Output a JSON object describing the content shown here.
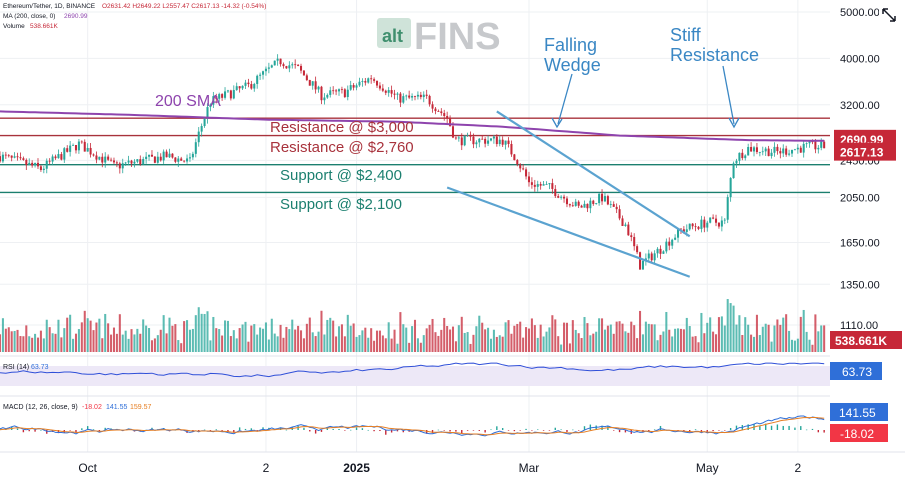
{
  "header": {
    "symbol_line": "Ethereum/Tether, 1D, BINANCE",
    "ohlc_line": "O2631.42 H2649.22 L2557.47 C2617.13 -14.32 (-0.54%)",
    "ma_line": "MA (200, close, 0)",
    "ma_value": "2690.99",
    "volume_line": "Volume",
    "volume_value": "538.661K"
  },
  "watermark": {
    "prefix": "alt",
    "name": "FINS"
  },
  "colors": {
    "up": "#26a69a",
    "down": "#c62838",
    "sma": "#8e44ad",
    "resistance": "#a8323c",
    "support": "#1b7f6f",
    "wedge": "#5ba3d0",
    "annotation": "#3a87c4",
    "rsi": "#2f4fd8",
    "macd": "#2f6fd8",
    "signal": "#e67e22",
    "grid": "#eef0f3"
  },
  "annotations": {
    "sma_label": "200 SMA",
    "falling_wedge": [
      "Falling",
      "Wedge"
    ],
    "stiff_resistance": [
      "Stiff",
      "Resistance"
    ],
    "levels": [
      {
        "label": "Resistance @ $3,000",
        "price": 3000,
        "kind": "resistance"
      },
      {
        "label": "Resistance @ $2,760",
        "price": 2760,
        "kind": "resistance"
      },
      {
        "label": "Support @ $2,400",
        "price": 2400,
        "kind": "support"
      },
      {
        "label": "Support @ $2,100",
        "price": 2100,
        "kind": "support"
      }
    ]
  },
  "price_badges": [
    {
      "text": "2690.99",
      "price": 2690.99,
      "color": "#c62838"
    },
    {
      "text": "2617.13",
      "price": 2617.13,
      "color": "#c62838"
    }
  ],
  "volume_badge": "538.661K",
  "indicators": {
    "rsi": {
      "label": "RSI (14)",
      "value": "63.73",
      "badge_color": "#2f6fd8"
    },
    "macd": {
      "label": "MACD (12, 26, close, 9)",
      "values": [
        "-18.02",
        "141.55",
        "159.57"
      ],
      "badge_macd": "141.55",
      "badge_hist": "-18.02",
      "badge_macd_color": "#2f6fd8",
      "badge_hist_color": "#f23645"
    }
  },
  "chart_data": {
    "type": "candlestick",
    "x_range": [
      "2024-09-01",
      "2025-06-12"
    ],
    "y_scale": "log",
    "y_ticks": [
      5000,
      4000,
      3200,
      2450,
      2050,
      1650,
      1350,
      1110
    ],
    "y_tick_labels": [
      "5000.00",
      "4000.00",
      "3200.00",
      "2450.00",
      "2050.00",
      "1650.00",
      "1350.00",
      "1110.00"
    ],
    "x_ticks": [
      {
        "label": "Oct",
        "date": "2024-10-01"
      },
      {
        "label": "2",
        "date": "2024-12-01"
      },
      {
        "label": "2025",
        "date": "2025-01-01"
      },
      {
        "label": "Mar",
        "date": "2025-03-01"
      },
      {
        "label": "May",
        "date": "2025-05-01"
      },
      {
        "label": "2",
        "date": "2025-06-01"
      }
    ],
    "close_anchors": [
      [
        "2024-09-01",
        2500
      ],
      [
        "2024-09-15",
        2350
      ],
      [
        "2024-09-28",
        2650
      ],
      [
        "2024-10-10",
        2380
      ],
      [
        "2024-10-28",
        2500
      ],
      [
        "2024-11-05",
        2430
      ],
      [
        "2024-11-12",
        3250
      ],
      [
        "2024-11-25",
        3500
      ],
      [
        "2024-12-06",
        3950
      ],
      [
        "2024-12-12",
        3800
      ],
      [
        "2024-12-20",
        3350
      ],
      [
        "2024-12-28",
        3400
      ],
      [
        "2025-01-06",
        3650
      ],
      [
        "2025-01-15",
        3300
      ],
      [
        "2025-01-25",
        3300
      ],
      [
        "2025-02-01",
        3000
      ],
      [
        "2025-02-04",
        2700
      ],
      [
        "2025-02-20",
        2700
      ],
      [
        "2025-02-25",
        2450
      ],
      [
        "2025-03-01",
        2200
      ],
      [
        "2025-03-08",
        2150
      ],
      [
        "2025-03-18",
        1950
      ],
      [
        "2025-03-26",
        2050
      ],
      [
        "2025-04-03",
        1800
      ],
      [
        "2025-04-08",
        1480
      ],
      [
        "2025-04-15",
        1600
      ],
      [
        "2025-04-22",
        1750
      ],
      [
        "2025-05-01",
        1820
      ],
      [
        "2025-05-07",
        1820
      ],
      [
        "2025-05-10",
        2450
      ],
      [
        "2025-05-15",
        2600
      ],
      [
        "2025-05-25",
        2550
      ],
      [
        "2025-06-05",
        2620
      ],
      [
        "2025-06-10",
        2617
      ]
    ],
    "sma200_anchors": [
      [
        "2024-09-01",
        3100
      ],
      [
        "2024-10-15",
        3050
      ],
      [
        "2024-12-01",
        2980
      ],
      [
        "2025-01-15",
        2950
      ],
      [
        "2025-02-20",
        2880
      ],
      [
        "2025-04-01",
        2760
      ],
      [
        "2025-05-15",
        2700
      ],
      [
        "2025-06-10",
        2690.99
      ]
    ],
    "wedge_lines": [
      {
        "from": [
          "2025-02-18",
          3100
        ],
        "to": [
          "2025-04-25",
          1700
        ]
      },
      {
        "from": [
          "2025-02-01",
          2150
        ],
        "to": [
          "2025-04-25",
          1400
        ]
      }
    ],
    "current": {
      "close": 2617.13,
      "sma200": 2690.99,
      "volume": "538.661K",
      "rsi": 63.73,
      "macd": 141.55,
      "signal": 159.57,
      "hist": -18.02
    }
  }
}
